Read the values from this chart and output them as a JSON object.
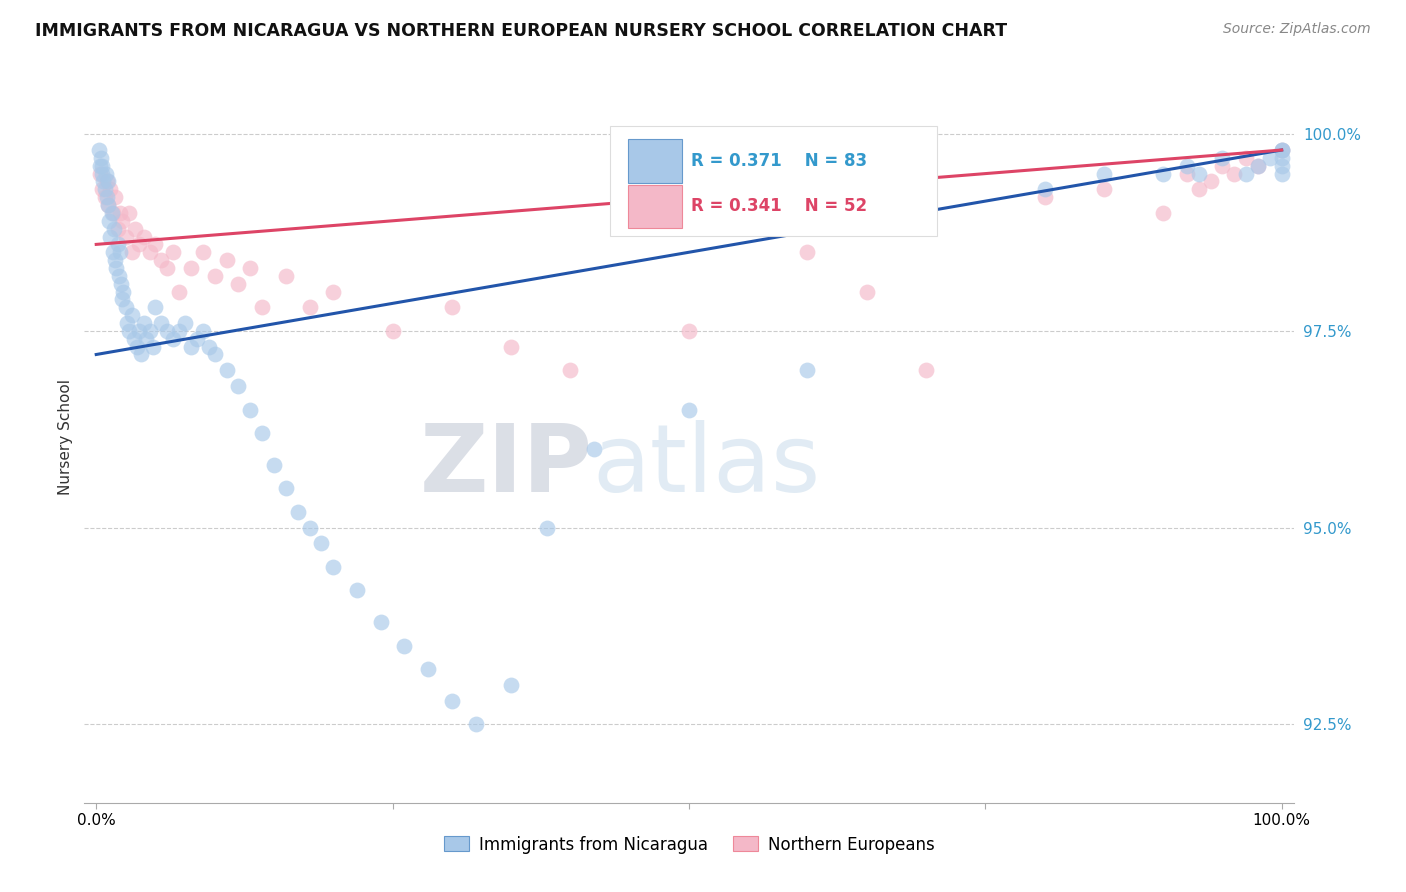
{
  "title": "IMMIGRANTS FROM NICARAGUA VS NORTHERN EUROPEAN NURSERY SCHOOL CORRELATION CHART",
  "source_text": "Source: ZipAtlas.com",
  "xlabel_blue": "Immigrants from Nicaragua",
  "xlabel_pink": "Northern Europeans",
  "ylabel": "Nursery School",
  "watermark_zip": "ZIP",
  "watermark_atlas": "atlas",
  "blue_R": 0.371,
  "blue_N": 83,
  "pink_R": 0.341,
  "pink_N": 52,
  "blue_color": "#a8c8e8",
  "pink_color": "#f4b8c8",
  "blue_edge_color": "#6699cc",
  "pink_edge_color": "#ee8899",
  "blue_line_color": "#2255aa",
  "pink_line_color": "#dd4466",
  "xlim": [
    -1.0,
    101.0
  ],
  "ylim": [
    91.5,
    100.8
  ],
  "yticks": [
    92.5,
    95.0,
    97.5,
    100.0
  ],
  "ytick_labels": [
    "92.5%",
    "95.0%",
    "97.5%",
    "100.0%"
  ],
  "xticks": [
    0.0,
    25.0,
    50.0,
    75.0,
    100.0
  ],
  "xtick_labels": [
    "0.0%",
    "",
    "",
    "",
    "100.0%"
  ],
  "blue_x": [
    0.2,
    0.3,
    0.4,
    0.5,
    0.5,
    0.6,
    0.7,
    0.8,
    0.9,
    1.0,
    1.0,
    1.1,
    1.2,
    1.3,
    1.4,
    1.5,
    1.6,
    1.7,
    1.8,
    1.9,
    2.0,
    2.1,
    2.2,
    2.3,
    2.5,
    2.6,
    2.8,
    3.0,
    3.2,
    3.4,
    3.6,
    3.8,
    4.0,
    4.2,
    4.5,
    4.8,
    5.0,
    5.5,
    6.0,
    6.5,
    7.0,
    7.5,
    8.0,
    8.5,
    9.0,
    9.5,
    10.0,
    11.0,
    12.0,
    13.0,
    14.0,
    15.0,
    16.0,
    17.0,
    18.0,
    19.0,
    20.0,
    22.0,
    24.0,
    26.0,
    28.0,
    30.0,
    32.0,
    35.0,
    38.0,
    42.0,
    50.0,
    60.0,
    70.0,
    80.0,
    85.0,
    90.0,
    92.0,
    93.0,
    95.0,
    97.0,
    98.0,
    99.0,
    100.0,
    100.0,
    100.0,
    100.0,
    100.0
  ],
  "blue_y": [
    99.8,
    99.6,
    99.7,
    99.5,
    99.6,
    99.4,
    99.3,
    99.5,
    99.2,
    99.4,
    99.1,
    98.9,
    98.7,
    99.0,
    98.5,
    98.8,
    98.4,
    98.3,
    98.6,
    98.2,
    98.5,
    98.1,
    97.9,
    98.0,
    97.8,
    97.6,
    97.5,
    97.7,
    97.4,
    97.3,
    97.5,
    97.2,
    97.6,
    97.4,
    97.5,
    97.3,
    97.8,
    97.6,
    97.5,
    97.4,
    97.5,
    97.6,
    97.3,
    97.4,
    97.5,
    97.3,
    97.2,
    97.0,
    96.8,
    96.5,
    96.2,
    95.8,
    95.5,
    95.2,
    95.0,
    94.8,
    94.5,
    94.2,
    93.8,
    93.5,
    93.2,
    92.8,
    92.5,
    93.0,
    95.0,
    96.0,
    96.5,
    97.0,
    99.5,
    99.3,
    99.5,
    99.5,
    99.6,
    99.5,
    99.7,
    99.5,
    99.6,
    99.7,
    99.8,
    99.5,
    99.6,
    99.7,
    99.8
  ],
  "pink_x": [
    0.3,
    0.5,
    0.7,
    0.9,
    1.0,
    1.2,
    1.4,
    1.6,
    1.8,
    2.0,
    2.2,
    2.5,
    2.8,
    3.0,
    3.3,
    3.6,
    4.0,
    4.5,
    5.0,
    5.5,
    6.0,
    6.5,
    7.0,
    8.0,
    9.0,
    10.0,
    11.0,
    12.0,
    13.0,
    14.0,
    16.0,
    18.0,
    20.0,
    25.0,
    30.0,
    35.0,
    40.0,
    50.0,
    60.0,
    65.0,
    70.0,
    80.0,
    85.0,
    90.0,
    92.0,
    93.0,
    94.0,
    95.0,
    96.0,
    97.0,
    98.0,
    100.0
  ],
  "pink_y": [
    99.5,
    99.3,
    99.2,
    99.4,
    99.1,
    99.3,
    99.0,
    99.2,
    98.8,
    99.0,
    98.9,
    98.7,
    99.0,
    98.5,
    98.8,
    98.6,
    98.7,
    98.5,
    98.6,
    98.4,
    98.3,
    98.5,
    98.0,
    98.3,
    98.5,
    98.2,
    98.4,
    98.1,
    98.3,
    97.8,
    98.2,
    97.8,
    98.0,
    97.5,
    97.8,
    97.3,
    97.0,
    97.5,
    98.5,
    98.0,
    97.0,
    99.2,
    99.3,
    99.0,
    99.5,
    99.3,
    99.4,
    99.6,
    99.5,
    99.7,
    99.6,
    99.8
  ]
}
